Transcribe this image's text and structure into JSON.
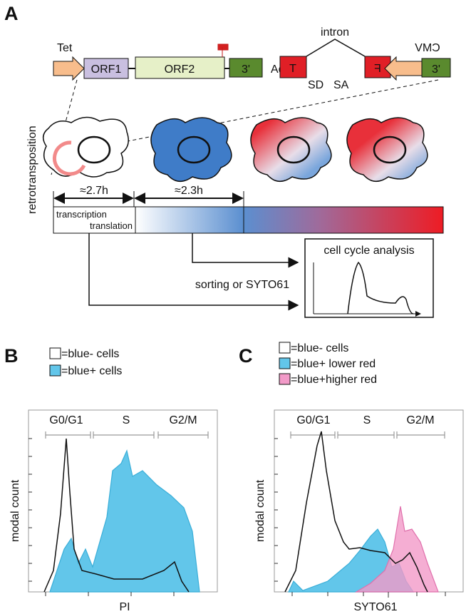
{
  "panel_a": {
    "label": "A",
    "tet": "Tet",
    "orf1": "ORF1",
    "orf2": "ORF2",
    "utr3_left": "3'",
    "pa": "pA",
    "t": "T",
    "intron": "intron",
    "sd": "SD",
    "sa": "SA",
    "f": "F",
    "cmv": "CMV",
    "utr3_right": "3'",
    "retrotransposition": "retrotransposition",
    "time1": "≈2.7h",
    "time2": "≈2.3h",
    "transcription": "transcription",
    "translation": "translation",
    "cell_cycle": "cell cycle analysis",
    "sorting": "sorting or SYTO61"
  },
  "panel_b": {
    "label": "B",
    "legend": [
      "=blue- cells",
      "=blue+ cells"
    ],
    "phases": [
      "G0/G1",
      "S",
      "G2/M"
    ],
    "y_label": "modal count",
    "x_label": "PI"
  },
  "panel_c": {
    "label": "C",
    "legend": [
      "=blue- cells",
      "=blue+ lower red",
      "=blue+higher red"
    ],
    "phases": [
      "G0/G1",
      "S",
      "G2/M"
    ],
    "y_label": "modal count",
    "x_label": "SYTO61"
  }
}
